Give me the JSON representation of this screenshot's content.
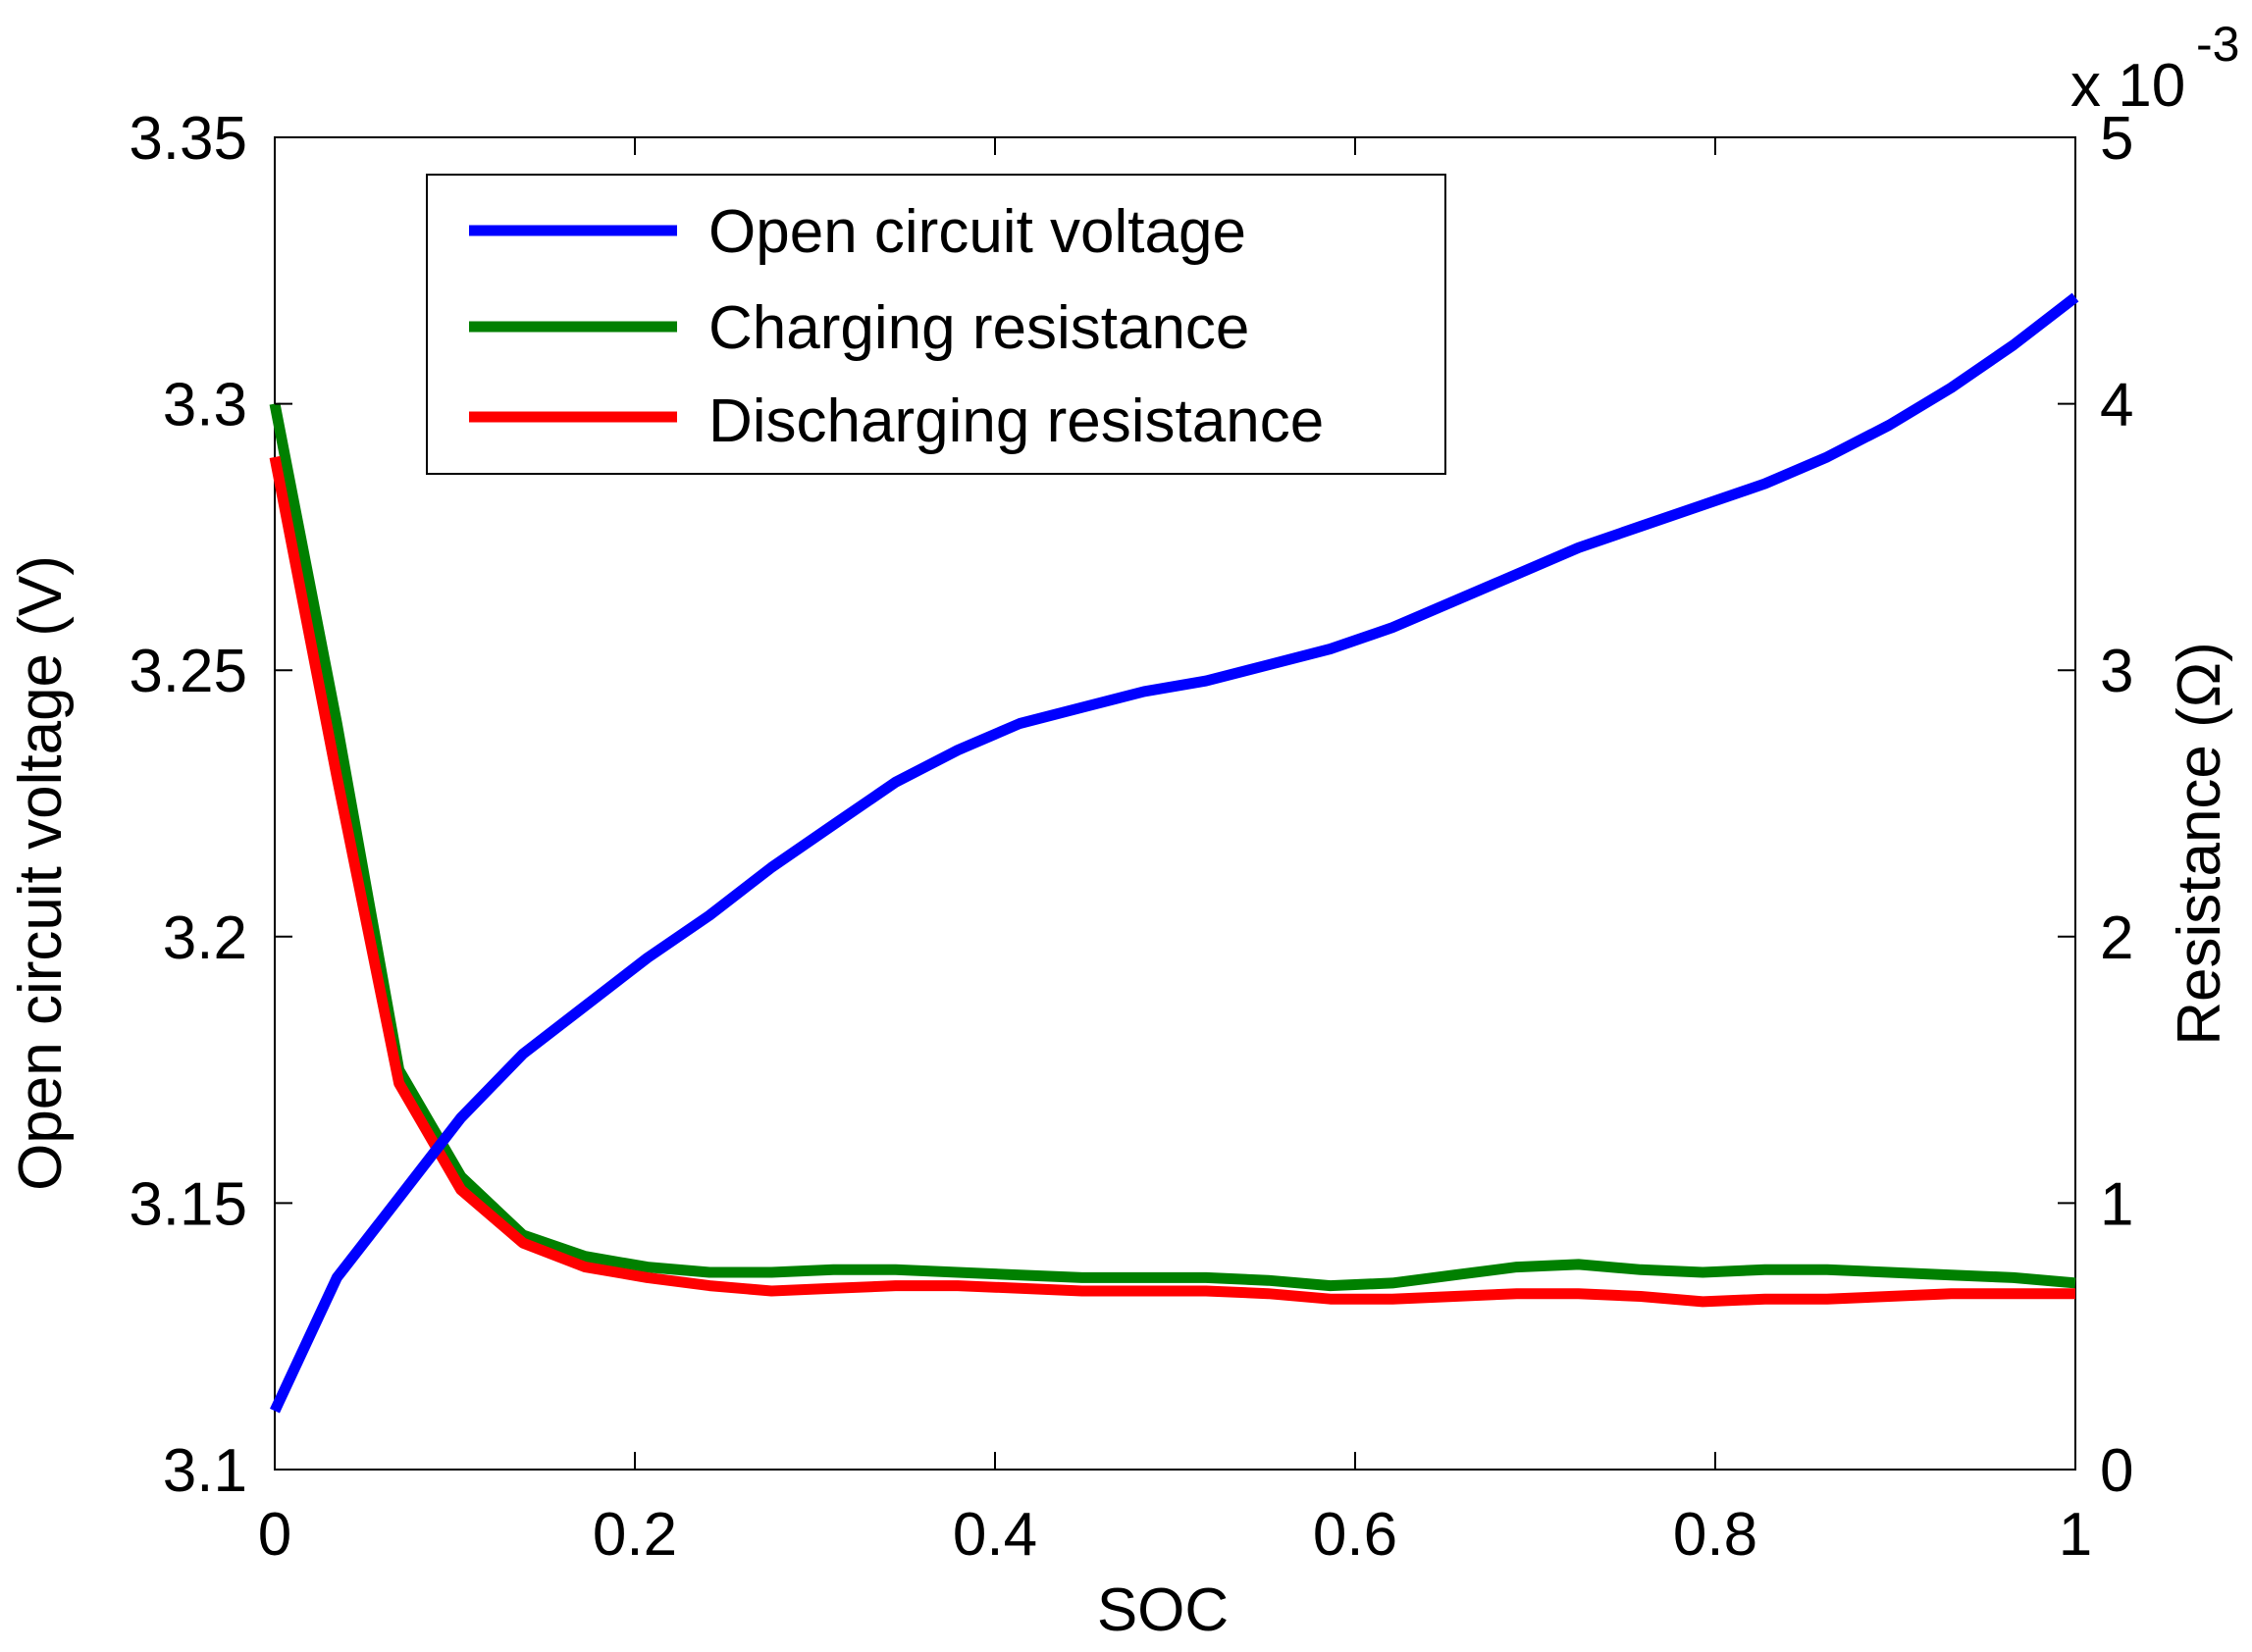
{
  "chart_data": {
    "type": "line",
    "xlabel": "SOC",
    "ylabel_left": "Open circuit voltage (V)",
    "ylabel_right": "Resistance (Ω)",
    "right_exponent_base": "x 10",
    "right_exponent_power": "-3",
    "xlim": [
      0,
      1
    ],
    "ylim_left": [
      3.1,
      3.35
    ],
    "ylim_right": [
      0,
      5
    ],
    "x_ticks": [
      "0",
      "0.2",
      "0.4",
      "0.6",
      "0.8",
      "1"
    ],
    "x_tick_values": [
      0,
      0.2,
      0.4,
      0.6,
      0.8,
      1
    ],
    "y_left_ticks": [
      "3.1",
      "3.15",
      "3.2",
      "3.25",
      "3.3",
      "3.35"
    ],
    "y_left_tick_values": [
      3.1,
      3.15,
      3.2,
      3.25,
      3.3,
      3.35
    ],
    "y_right_ticks": [
      "0",
      "1",
      "2",
      "3",
      "4",
      "5"
    ],
    "y_right_tick_values": [
      0,
      1,
      2,
      3,
      4,
      5
    ],
    "legend_position": "top-left",
    "x": [
      0,
      0.0345,
      0.069,
      0.1034,
      0.1379,
      0.1724,
      0.2069,
      0.2414,
      0.2759,
      0.3103,
      0.3448,
      0.3793,
      0.4138,
      0.4483,
      0.4828,
      0.5172,
      0.5517,
      0.5862,
      0.6207,
      0.6552,
      0.6897,
      0.7241,
      0.7586,
      0.7931,
      0.8276,
      0.8621,
      0.8966,
      0.931,
      0.9655,
      1
    ],
    "series": [
      {
        "name": "Open circuit voltage",
        "axis": "left",
        "color": "#0000ff",
        "values": [
          3.111,
          3.136,
          3.151,
          3.166,
          3.178,
          3.187,
          3.196,
          3.204,
          3.213,
          3.221,
          3.229,
          3.235,
          3.24,
          3.243,
          3.246,
          3.248,
          3.251,
          3.254,
          3.258,
          3.263,
          3.268,
          3.273,
          3.277,
          3.281,
          3.285,
          3.29,
          3.296,
          3.303,
          3.311,
          3.32
        ]
      },
      {
        "name": "Charging resistance",
        "axis": "right",
        "color": "#008000",
        "values": [
          4.0,
          2.8,
          1.5,
          1.1,
          0.88,
          0.8,
          0.76,
          0.74,
          0.74,
          0.75,
          0.75,
          0.74,
          0.73,
          0.72,
          0.72,
          0.72,
          0.71,
          0.69,
          0.7,
          0.73,
          0.76,
          0.77,
          0.75,
          0.74,
          0.75,
          0.75,
          0.74,
          0.73,
          0.72,
          0.7
        ]
      },
      {
        "name": "Discharging resistance",
        "axis": "right",
        "color": "#ff0000",
        "values": [
          3.8,
          2.6,
          1.45,
          1.05,
          0.85,
          0.76,
          0.72,
          0.69,
          0.67,
          0.68,
          0.69,
          0.69,
          0.68,
          0.67,
          0.67,
          0.67,
          0.66,
          0.64,
          0.64,
          0.65,
          0.66,
          0.66,
          0.65,
          0.63,
          0.64,
          0.64,
          0.65,
          0.66,
          0.66,
          0.66
        ]
      }
    ]
  }
}
